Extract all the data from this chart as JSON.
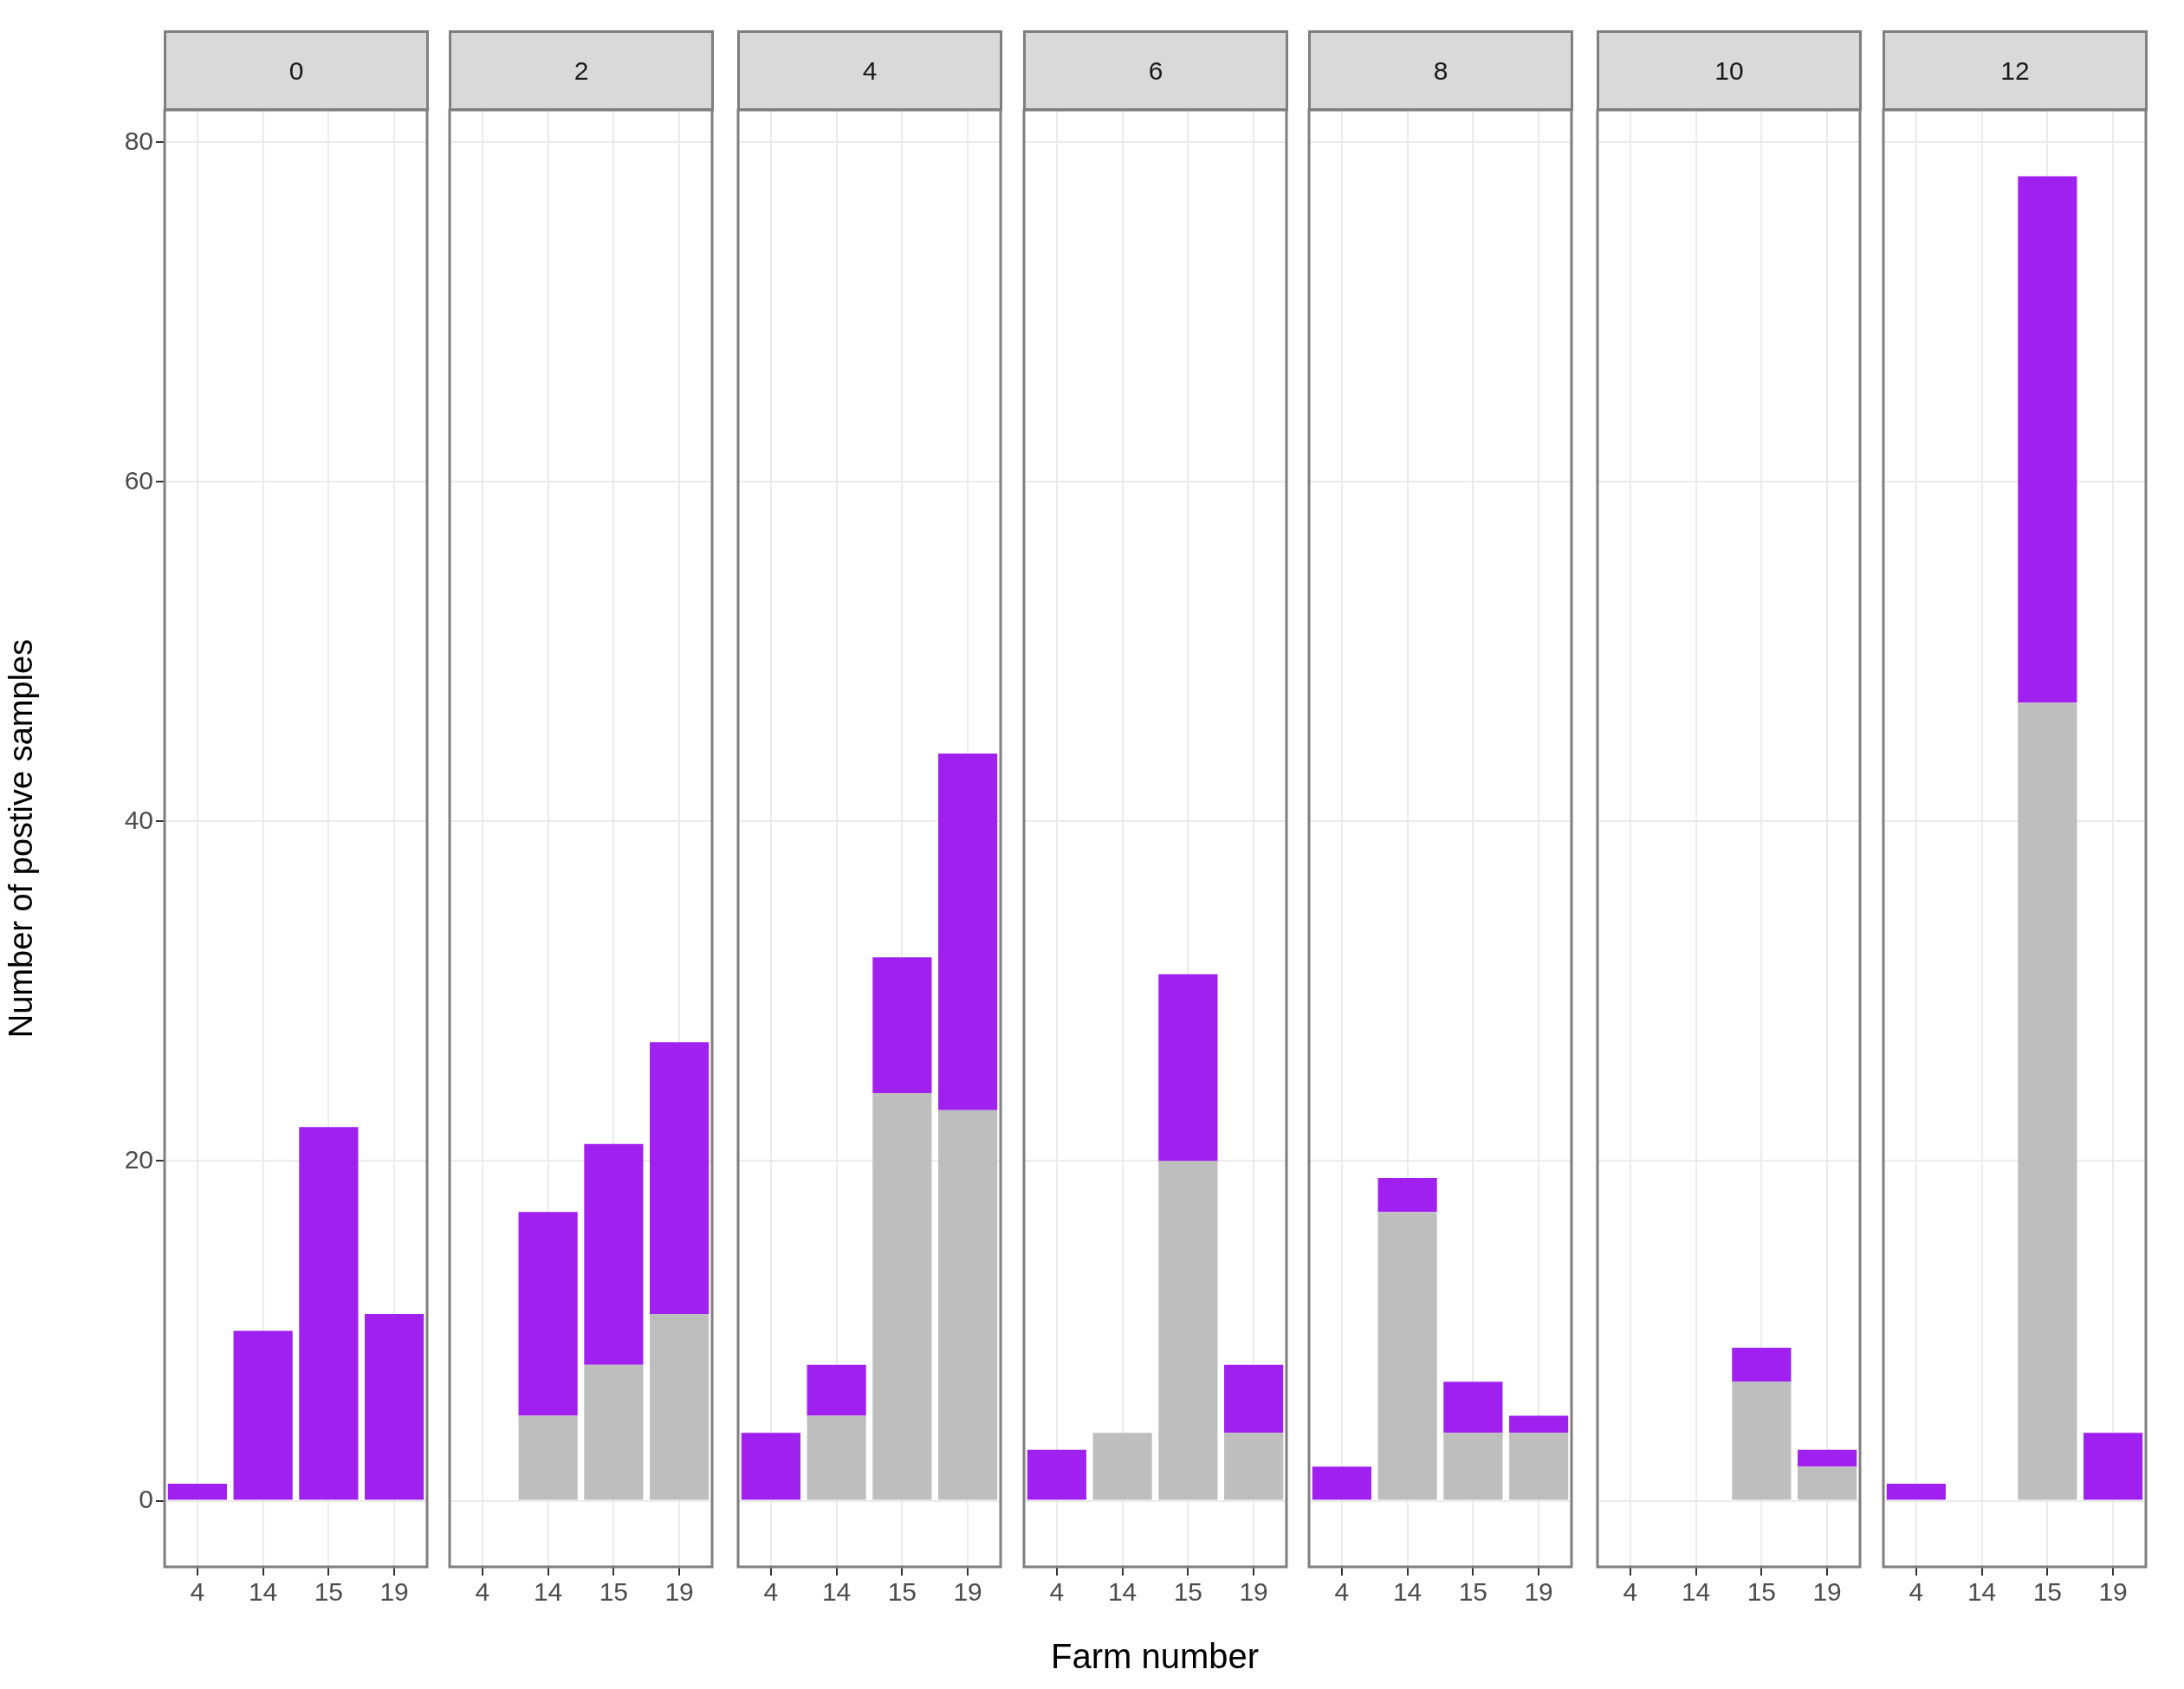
{
  "chart_data": [
    {
      "type": "bar",
      "title": "0",
      "ylabel": "Number of postive samples",
      "categories": [
        "4",
        "14",
        "15",
        "19"
      ],
      "series": [
        {
          "color": "#bebebe",
          "values": [
            0,
            0,
            0,
            0
          ]
        },
        {
          "color": "#a020f0",
          "values": [
            1,
            10,
            22,
            11
          ]
        }
      ],
      "stacked": true,
      "ylim": [
        -3.9,
        81.9
      ],
      "yticks": [
        0,
        20,
        40,
        60,
        80
      ],
      "grid": true
    },
    {
      "type": "bar",
      "title": "2",
      "categories": [
        "4",
        "14",
        "15",
        "19"
      ],
      "series": [
        {
          "color": "#bebebe",
          "values": [
            0,
            5,
            8,
            11
          ]
        },
        {
          "color": "#a020f0",
          "values": [
            0,
            12,
            13,
            16
          ]
        }
      ],
      "stacked": true,
      "ylim": [
        -3.9,
        81.9
      ],
      "yticks": [
        0,
        20,
        40,
        60,
        80
      ],
      "grid": true,
      "tick_labels": "x"
    },
    {
      "type": "bar",
      "title": "4",
      "categories": [
        "4",
        "14",
        "15",
        "19"
      ],
      "series": [
        {
          "color": "#bebebe",
          "values": [
            0,
            5,
            24,
            23
          ]
        },
        {
          "color": "#a020f0",
          "values": [
            4,
            3,
            8,
            21
          ]
        }
      ],
      "stacked": true,
      "ylim": [
        -3.9,
        81.9
      ],
      "yticks": [
        0,
        20,
        40,
        60,
        80
      ],
      "grid": true,
      "tick_labels": "x"
    },
    {
      "type": "bar",
      "title": "6",
      "xlabel": "Farm number",
      "categories": [
        "4",
        "14",
        "15",
        "19"
      ],
      "series": [
        {
          "color": "#bebebe",
          "values": [
            0,
            4,
            20,
            4
          ]
        },
        {
          "color": "#a020f0",
          "values": [
            3,
            0,
            11,
            4
          ]
        }
      ],
      "stacked": true,
      "ylim": [
        -3.9,
        81.9
      ],
      "yticks": [
        0,
        20,
        40,
        60,
        80
      ],
      "grid": true,
      "tick_labels": "x"
    },
    {
      "type": "bar",
      "title": "8",
      "categories": [
        "4",
        "14",
        "15",
        "19"
      ],
      "series": [
        {
          "color": "#bebebe",
          "values": [
            0,
            17,
            4,
            4
          ]
        },
        {
          "color": "#a020f0",
          "values": [
            2,
            2,
            3,
            1
          ]
        }
      ],
      "stacked": true,
      "ylim": [
        -3.9,
        81.9
      ],
      "yticks": [
        0,
        20,
        40,
        60,
        80
      ],
      "grid": true,
      "tick_labels": "x"
    },
    {
      "type": "bar",
      "title": "10",
      "categories": [
        "4",
        "14",
        "15",
        "19"
      ],
      "series": [
        {
          "color": "#bebebe",
          "values": [
            0,
            0,
            7,
            2
          ]
        },
        {
          "color": "#a020f0",
          "values": [
            0,
            0,
            2,
            1
          ]
        }
      ],
      "stacked": true,
      "ylim": [
        -3.9,
        81.9
      ],
      "yticks": [
        0,
        20,
        40,
        60,
        80
      ],
      "grid": true,
      "tick_labels": "x"
    },
    {
      "type": "bar",
      "title": "12",
      "categories": [
        "4",
        "14",
        "15",
        "19"
      ],
      "series": [
        {
          "color": "#bebebe",
          "values": [
            0,
            0,
            47,
            0
          ]
        },
        {
          "color": "#a020f0",
          "values": [
            1,
            0,
            31,
            4
          ]
        }
      ],
      "stacked": true,
      "ylim": [
        -3.9,
        81.9
      ],
      "yticks": [
        0,
        20,
        40,
        60,
        80
      ],
      "grid": true,
      "tick_labels": "x"
    }
  ]
}
